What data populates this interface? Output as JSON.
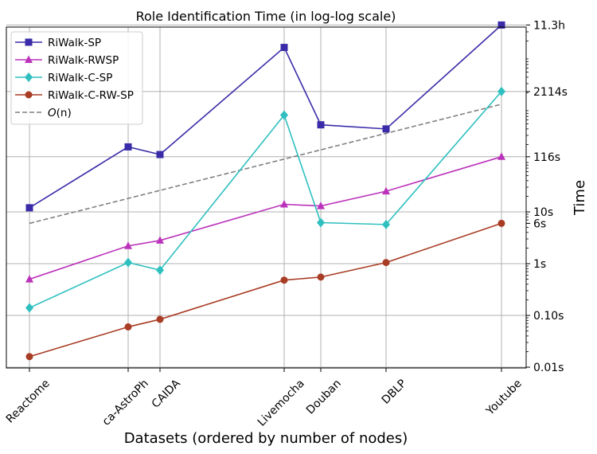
{
  "chart_data": {
    "type": "line",
    "title": "Role Identification Time (in log-log scale)",
    "xlabel": "Datasets (ordered by number of nodes)",
    "ylabel": "Time",
    "x_scale": "log",
    "y_scale": "log",
    "categories": [
      "Reactome",
      "ca-AstroPh",
      "CAIDA",
      "Livemocha",
      "Douban",
      "DBLP",
      "Youtube"
    ],
    "y_tick_labels": [
      "0.01s",
      "0.10s",
      "1s",
      "6s",
      "10s",
      "116s",
      "2114s",
      "11.3h"
    ],
    "series": [
      {
        "name": "RiWalk-SP",
        "color": "#3a2ca8",
        "marker": "square",
        "values": [
          12,
          180,
          128,
          15000,
          480,
          400,
          40680
        ]
      },
      {
        "name": "RiWalk-RWSP",
        "color": "#bb33bb",
        "marker": "triangle",
        "values": [
          0.5,
          2.2,
          2.8,
          14,
          13,
          25,
          116
        ]
      },
      {
        "name": "RiWalk-C-SP",
        "color": "#2fbfbf",
        "marker": "diamond",
        "values": [
          0.14,
          1.05,
          0.75,
          740,
          6.2,
          5.7,
          2114
        ]
      },
      {
        "name": "RiWalk-C-RW-SP",
        "color": "#a83c24",
        "marker": "circle",
        "values": [
          0.016,
          0.06,
          0.084,
          0.48,
          0.55,
          1.05,
          6
        ]
      },
      {
        "name": "O(n)",
        "color": "#808080",
        "marker": "none",
        "dash": true,
        "values": [
          6,
          null,
          null,
          null,
          null,
          null,
          1200
        ]
      }
    ],
    "legend_labels": [
      "RiWalk-SP",
      "RiWalk-RWSP",
      "RiWalk-C-SP",
      "RiWalk-C-RW-SP",
      "O(n)"
    ],
    "legend_position": "top-left",
    "grid": true
  }
}
